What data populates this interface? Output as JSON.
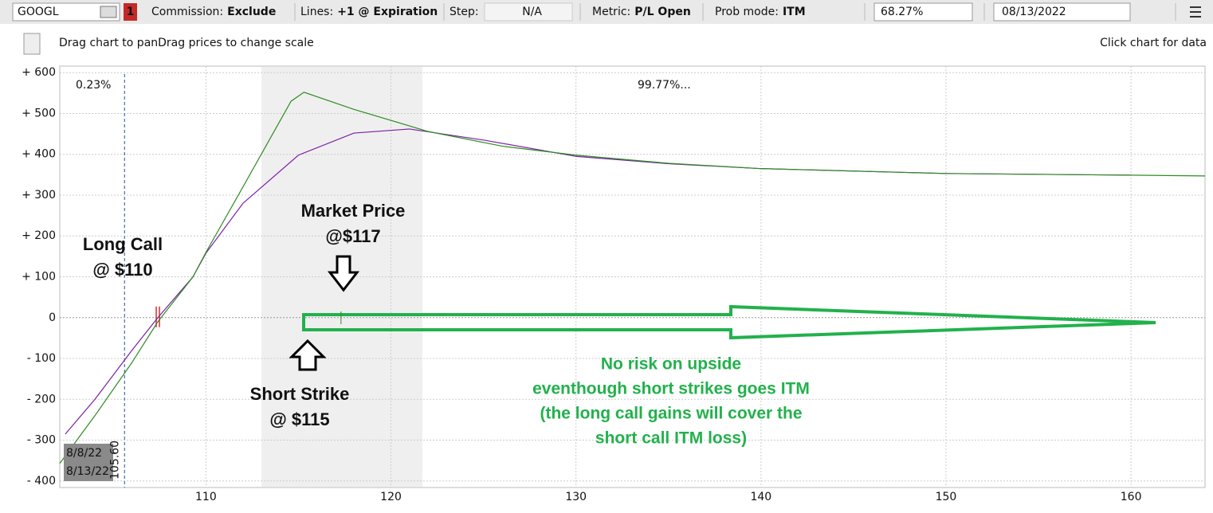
{
  "toolbar": {
    "symbol": "GOOGL",
    "badge": "1",
    "items": [
      {
        "label": "Commission:",
        "value": "Exclude"
      },
      {
        "label": "Lines:",
        "value": "+1 @ Expiration"
      },
      {
        "label": "Step:",
        "value": "N/A"
      },
      {
        "label": "Metric:",
        "value": "P/L Open"
      },
      {
        "label": "Prob mode:",
        "value": "ITM"
      }
    ],
    "probability": "68.27%",
    "date": "08/13/2022"
  },
  "header": {
    "hint": "Drag chart to panDrag prices to change scale",
    "right_hint": "Click chart for data"
  },
  "chart_data": {
    "type": "line",
    "xlim": [
      102.1,
      164
    ],
    "ylim": [
      -416,
      616
    ],
    "xticks": [
      110,
      120,
      130,
      140,
      150,
      160
    ],
    "yticks": [
      {
        "value": 600,
        "label": "+ 600"
      },
      {
        "value": 500,
        "label": "+ 500"
      },
      {
        "value": 400,
        "label": "+ 400"
      },
      {
        "value": 300,
        "label": "+ 300"
      },
      {
        "value": 200,
        "label": "+ 200"
      },
      {
        "value": 100,
        "label": "+ 100"
      },
      0,
      {
        "value": -100,
        "label": "- 100"
      },
      {
        "value": -200,
        "label": "- 200"
      },
      {
        "value": -300,
        "label": "- 300"
      },
      {
        "value": -400,
        "label": "- 400"
      }
    ],
    "grid": true,
    "series": [
      {
        "name": "8/8/22",
        "color": "#7b1fa8",
        "x": [
          102.4,
          104,
          106,
          107.4,
          109.3,
          110,
          112,
          115,
          118,
          121,
          125,
          130,
          135,
          140,
          150,
          160
        ],
        "values": [
          -285,
          -200,
          -80,
          0,
          100,
          158,
          280,
          398,
          452,
          462,
          435,
          395,
          377,
          365,
          353,
          349
        ]
      },
      {
        "name": "8/13/22",
        "color": "#2e8b22",
        "x": [
          102.1,
          104,
          106,
          107.4,
          109.3,
          110,
          112,
          114.6,
          115.3,
          118,
          122,
          126,
          130,
          135,
          140,
          150,
          160,
          164
        ],
        "values": [
          -357,
          -240,
          -110,
          -10,
          100,
          160,
          320,
          530,
          552,
          510,
          456,
          420,
          398,
          378,
          365,
          353,
          349,
          347
        ]
      }
    ],
    "probability_labels": [
      "0.23%",
      "99.77%..."
    ],
    "marker": {
      "value": 105.6,
      "label": "105.60"
    },
    "highlight_range": [
      113,
      121.7
    ],
    "breakeven": 107.4,
    "annotations": [
      [
        "Long Call",
        "@ $110"
      ],
      [
        "Market Price",
        "@$117"
      ],
      [
        "Short Strike",
        "@ $115"
      ],
      [
        "No risk on upside",
        "eventhough short strikes goes ITM",
        "(the long call gains will cover the",
        "short call ITM loss)"
      ]
    ]
  }
}
